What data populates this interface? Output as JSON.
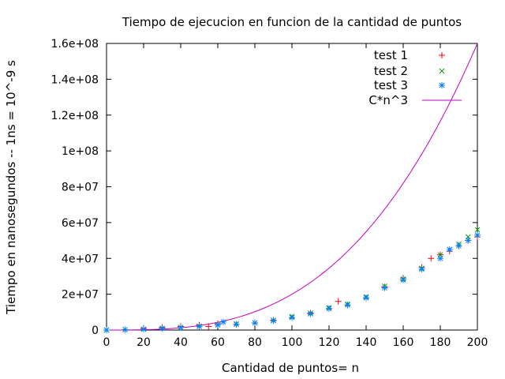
{
  "chart_data": {
    "type": "scatter",
    "title": "Tiempo de ejecucion en funcion de la cantidad de puntos",
    "xlabel": "Cantidad de puntos= n",
    "ylabel": "Tiempo en nanosegundos -- 1ns = 10^-9 s",
    "xlim": [
      0,
      200
    ],
    "ylim": [
      0,
      160000000
    ],
    "x_ticks": [
      0,
      20,
      40,
      60,
      80,
      100,
      120,
      140,
      160,
      180,
      200
    ],
    "x_tick_labels": [
      "0",
      "20",
      "40",
      "60",
      "80",
      "100",
      "120",
      "140",
      "160",
      "180",
      "200"
    ],
    "y_ticks": [
      0,
      20000000,
      40000000,
      60000000,
      80000000,
      100000000,
      120000000,
      140000000,
      160000000
    ],
    "y_tick_labels": [
      "0",
      "2e+07",
      "4e+07",
      "6e+07",
      "8e+07",
      "1e+08",
      "1.2e+08",
      "1.4e+08",
      "1.6e+08"
    ],
    "grid": false,
    "legend_position": "top-right",
    "series": [
      {
        "name": "test 1",
        "color": "#ff0000",
        "marker": "plus",
        "x": [
          0,
          10,
          20,
          30,
          40,
          50,
          55,
          60,
          70,
          80,
          90,
          100,
          110,
          120,
          125,
          130,
          140,
          150,
          160,
          170,
          175,
          180,
          185,
          190,
          195,
          200
        ],
        "y": [
          0,
          200000,
          1000000,
          1500000,
          2000000,
          2800000,
          2000000,
          3500000,
          3200000,
          3900000,
          5500000,
          7000000,
          9500000,
          12000000,
          16000000,
          14000000,
          18000000,
          24000000,
          29000000,
          35000000,
          40000000,
          42000000,
          44000000,
          47000000,
          50000000,
          52000000
        ]
      },
      {
        "name": "test 2",
        "color": "#00a000",
        "marker": "cross",
        "x": [
          0,
          10,
          20,
          30,
          40,
          50,
          60,
          70,
          80,
          90,
          100,
          110,
          120,
          130,
          140,
          150,
          160,
          170,
          180,
          185,
          190,
          195,
          200
        ],
        "y": [
          0,
          200000,
          500000,
          1000000,
          1500000,
          2200000,
          3000000,
          3500000,
          4000000,
          5500000,
          7500000,
          9500000,
          12500000,
          14500000,
          18500000,
          24500000,
          28500000,
          34500000,
          42000000,
          45000000,
          48000000,
          52000000,
          56000000
        ]
      },
      {
        "name": "test 3",
        "color": "#0080ff",
        "marker": "star",
        "x": [
          0,
          10,
          20,
          30,
          40,
          50,
          60,
          63,
          70,
          80,
          90,
          100,
          110,
          120,
          130,
          140,
          150,
          160,
          170,
          180,
          185,
          190,
          195,
          200
        ],
        "y": [
          0,
          200000,
          500000,
          1000000,
          1400000,
          2000000,
          2800000,
          4500000,
          3200000,
          4000000,
          5200000,
          7000000,
          9000000,
          12000000,
          14000000,
          18000000,
          23500000,
          28000000,
          34000000,
          40000000,
          45000000,
          47000000,
          50000000,
          53000000
        ]
      },
      {
        "name": "C*n^3",
        "color": "#c000c0",
        "marker": "line",
        "coefficient": 20,
        "x_range": [
          0,
          200
        ]
      }
    ]
  }
}
